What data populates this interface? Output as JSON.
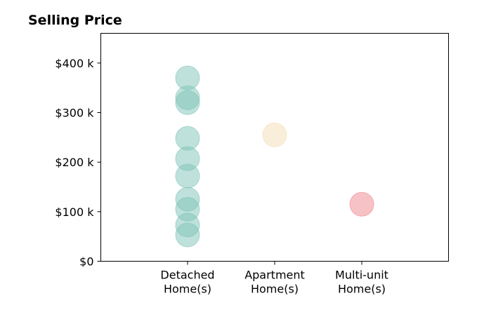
{
  "chart_data": {
    "type": "scatter",
    "title": "Selling Price",
    "xlabel": "",
    "ylabel": "",
    "categories": [
      [
        "Detached",
        "Home(s)"
      ],
      [
        "Apartment",
        "Home(s)"
      ],
      [
        "Multi-unit",
        "Home(s)"
      ]
    ],
    "ylim": [
      0,
      460000
    ],
    "yticks": [
      0,
      100000,
      200000,
      300000,
      400000
    ],
    "ytick_labels": [
      "$0",
      "$100 k",
      "$200 k",
      "$300 k",
      "$400 k"
    ],
    "grid": false,
    "series": [
      {
        "category": 0,
        "color": "#7fc4b8",
        "values": [
          370000,
          330000,
          320000,
          248000,
          207000,
          172000,
          125000,
          105000,
          73000,
          53000
        ]
      },
      {
        "category": 1,
        "color": "#f4deb3",
        "values": [
          255000
        ]
      },
      {
        "category": 2,
        "color": "#f0868e",
        "values": [
          115000
        ]
      }
    ]
  }
}
